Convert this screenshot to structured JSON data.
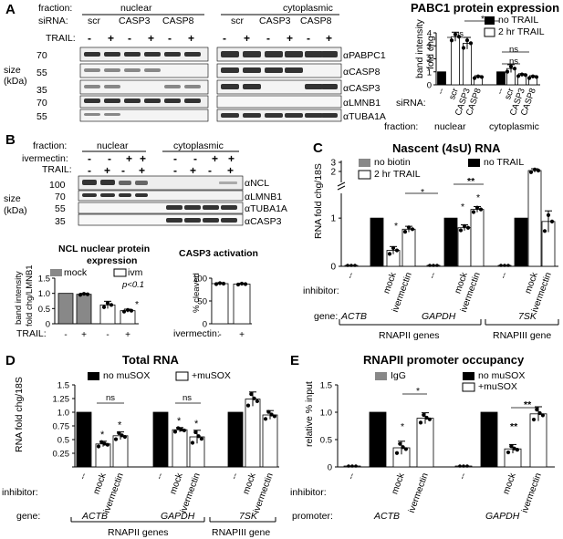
{
  "panels": {
    "A": {
      "label": "A",
      "fraction_label": "fraction:",
      "sirna_label": "siRNA:",
      "trail_label": "TRAIL:",
      "fractions": [
        "nuclear",
        "cytoplasmic"
      ],
      "sirnas": [
        "scr",
        "CASP3",
        "CASP8"
      ],
      "size_label": "size",
      "kda_label": "(kDa)",
      "markers": [
        "70",
        "55",
        "35",
        "70",
        "55"
      ],
      "blots": [
        "αPABPC1",
        "αCASP8",
        "αCASP3",
        "αLMNB1",
        "αTUBA1A"
      ],
      "chart_title": "PABC1 protein expression",
      "ylabel_1": "band intensity",
      "ylabel_2": "fold chg",
      "legend": [
        "no TRAIL",
        "2 hr TRAIL"
      ],
      "x_prefix": "siRNA:",
      "fraction_prefix": "fraction:",
      "sig": [
        "*",
        "ns",
        "ns",
        "ns"
      ]
    },
    "B": {
      "label": "B",
      "fraction_label": "fraction:",
      "ivermectin_label": "ivermectin:",
      "trail_label": "TRAIL:",
      "fractions": [
        "nuclear",
        "cytoplasmic"
      ],
      "size_label": "size",
      "kda_label": "(kDa)",
      "markers": [
        "100",
        "70",
        "55",
        "35"
      ],
      "blots": [
        "αNCL",
        "αLMNB1",
        "αTUBA1A",
        "αCASP3"
      ],
      "ncl_title_1": "NCL nuclear protein",
      "ncl_title_2": "expression",
      "ncl_legend": [
        "mock",
        "ivm"
      ],
      "ncl_ylabel_1": "band intensity",
      "ncl_ylabel_2": "fold chg/LMNB1",
      "ncl_annot": "p<0.1",
      "ncl_star": "*",
      "casp_title": "CASP3 activation",
      "casp_ylabel": "% cleaved",
      "trail_x": "TRAIL:",
      "ivm_x": "ivermectin:"
    },
    "C": {
      "label": "C",
      "title": "Nascent (4sU) RNA",
      "legend": [
        "no biotin",
        "no TRAIL",
        "2 hr TRAIL"
      ],
      "ylabel": "RNA fold chg/18S",
      "inhibitor_label": "inhibitor:",
      "gene_label": "gene:",
      "genes": [
        "ACTB",
        "GAPDH",
        "7SK"
      ],
      "groups": [
        "RNAPII genes",
        "RNAPIII gene"
      ],
      "xticks": [
        "--",
        "mock",
        "ivermectin"
      ],
      "sig": [
        "*",
        "*",
        "*",
        "*",
        "**"
      ]
    },
    "D": {
      "label": "D",
      "title": "Total RNA",
      "legend": [
        "no muSOX",
        "+muSOX"
      ],
      "ylabel": "RNA fold chg/18S",
      "inhibitor_label": "inhibitor:",
      "gene_label": "gene:",
      "genes": [
        "ACTB",
        "GAPDH",
        "7SK"
      ],
      "groups": [
        "RNAPII genes",
        "RNAPIII gene"
      ],
      "xticks": [
        "--",
        "mock",
        "ivermectin"
      ],
      "sig": [
        "ns",
        "ns",
        "*",
        "*",
        "*",
        "*"
      ]
    },
    "E": {
      "label": "E",
      "title": "RNAPII promoter occupancy",
      "legend": [
        "IgG",
        "no muSOX",
        "+muSOX"
      ],
      "ylabel": "relative % input",
      "inhibitor_label": "inhibitor:",
      "promoter_label": "promoter:",
      "genes": [
        "ACTB",
        "GAPDH"
      ],
      "xticks": [
        "--",
        "mock",
        "ivermectin"
      ],
      "sig": [
        "*",
        "*",
        "**",
        "**"
      ]
    }
  },
  "chart_data": [
    {
      "id": "A-PABC1",
      "type": "bar",
      "title": "PABC1 protein expression",
      "ylabel": "band intensity fold chg",
      "ylim": [
        0,
        4
      ],
      "yticks": [
        0,
        1,
        2,
        3,
        4
      ],
      "categories": [
        "nuclear --",
        "nuclear scr",
        "nuclear CASP3",
        "nuclear CASP8",
        "cytoplasmic --",
        "cytoplasmic scr",
        "cytoplasmic CASP3",
        "cytoplasmic CASP8"
      ],
      "series": [
        {
          "name": "no TRAIL",
          "values": [
            1,
            null,
            null,
            null,
            1,
            null,
            null,
            null
          ]
        },
        {
          "name": "2 hr TRAIL",
          "values": [
            null,
            3.7,
            3.2,
            0.6,
            null,
            1.25,
            0.75,
            0.6
          ]
        }
      ],
      "errors": [
        null,
        0.35,
        0.45,
        0.1,
        null,
        0.3,
        0.1,
        0.1
      ]
    },
    {
      "id": "B-NCL",
      "type": "bar",
      "title": "NCL nuclear protein expression",
      "ylabel": "band intensity fold chg/LMNB1",
      "ylim": [
        0,
        1.5
      ],
      "yticks": [
        0,
        0.5,
        1.0,
        1.5
      ],
      "categories": [
        "mock -",
        "mock +",
        "ivm -",
        "ivm +"
      ],
      "values": [
        1.0,
        0.97,
        0.62,
        0.43
      ],
      "errors": [
        0,
        0.03,
        0.12,
        0.05
      ]
    },
    {
      "id": "B-CASP3",
      "type": "bar",
      "title": "CASP3 activation",
      "ylabel": "% cleaved",
      "ylim": [
        0,
        100
      ],
      "yticks": [
        0,
        50,
        100
      ],
      "categories": [
        "ivermectin -",
        "ivermectin +"
      ],
      "values": [
        88,
        87
      ],
      "errors": [
        2,
        2
      ]
    },
    {
      "id": "C",
      "type": "bar",
      "title": "Nascent (4sU) RNA",
      "ylabel": "RNA fold chg/18S",
      "ylim": [
        0,
        3
      ],
      "yticks": [
        "0",
        "1",
        "2",
        "3"
      ],
      "categories": [
        "ACTB --",
        "ACTB no TRAIL",
        "ACTB mock",
        "ACTB ivermectin",
        "GAPDH --",
        "GAPDH no TRAIL",
        "GAPDH mock",
        "GAPDH ivermectin",
        "7SK --",
        "7SK no TRAIL",
        "7SK mock",
        "7SK ivermectin"
      ],
      "series": [
        {
          "name": "no biotin",
          "values": [
            0.01,
            null,
            null,
            null,
            0.02,
            null,
            null,
            null,
            0.01,
            null,
            null,
            null
          ]
        },
        {
          "name": "no TRAIL",
          "values": [
            null,
            1,
            null,
            null,
            null,
            1,
            null,
            null,
            null,
            1,
            null,
            null
          ]
        },
        {
          "name": "2 hr TRAIL",
          "values": [
            null,
            null,
            0.33,
            0.77,
            null,
            null,
            0.8,
            1.18,
            null,
            null,
            2.3,
            0.93
          ]
        }
      ],
      "errors": [
        0,
        0,
        0.08,
        0.06,
        0,
        0,
        0.06,
        0.06,
        0,
        0,
        0.2,
        0.22
      ]
    },
    {
      "id": "D",
      "type": "bar",
      "title": "Total RNA",
      "ylabel": "RNA fold chg/18S",
      "ylim": [
        0,
        1.5
      ],
      "yticks": [
        0,
        0.25,
        0.5,
        0.75,
        1.0,
        1.25,
        1.5
      ],
      "categories": [
        "ACTB no",
        "ACTB mock",
        "ACTB ivermectin",
        "GAPDH no",
        "GAPDH mock",
        "GAPDH ivermectin",
        "7SK no",
        "7SK mock",
        "7SK ivermectin"
      ],
      "series": [
        {
          "name": "no muSOX",
          "values": [
            1,
            null,
            null,
            1,
            null,
            null,
            1,
            null,
            null
          ]
        },
        {
          "name": "+muSOX",
          "values": [
            null,
            0.42,
            0.57,
            null,
            0.68,
            0.55,
            null,
            1.24,
            0.95
          ]
        }
      ],
      "errors": [
        0,
        0.05,
        0.07,
        0,
        0.04,
        0.12,
        0,
        0.13,
        0.08
      ]
    },
    {
      "id": "E",
      "type": "bar",
      "title": "RNAPII promoter occupancy",
      "ylabel": "relative % input",
      "ylim": [
        0,
        1.5
      ],
      "yticks": [
        0,
        0.5,
        1.0,
        1.5
      ],
      "categories": [
        "ACTB --",
        "ACTB no",
        "ACTB mock",
        "ACTB ivermectin",
        "GAPDH --",
        "GAPDH no",
        "GAPDH mock",
        "GAPDH ivermectin"
      ],
      "series": [
        {
          "name": "IgG",
          "values": [
            0.005,
            null,
            null,
            null,
            0.005,
            null,
            null,
            null
          ]
        },
        {
          "name": "no muSOX",
          "values": [
            null,
            1,
            null,
            null,
            null,
            1,
            null,
            null
          ]
        },
        {
          "name": "+muSOX",
          "values": [
            null,
            null,
            0.35,
            0.89,
            null,
            null,
            0.33,
            0.97
          ]
        }
      ],
      "errors": [
        0,
        0,
        0.12,
        0.1,
        0,
        0,
        0.08,
        0.13
      ]
    }
  ]
}
